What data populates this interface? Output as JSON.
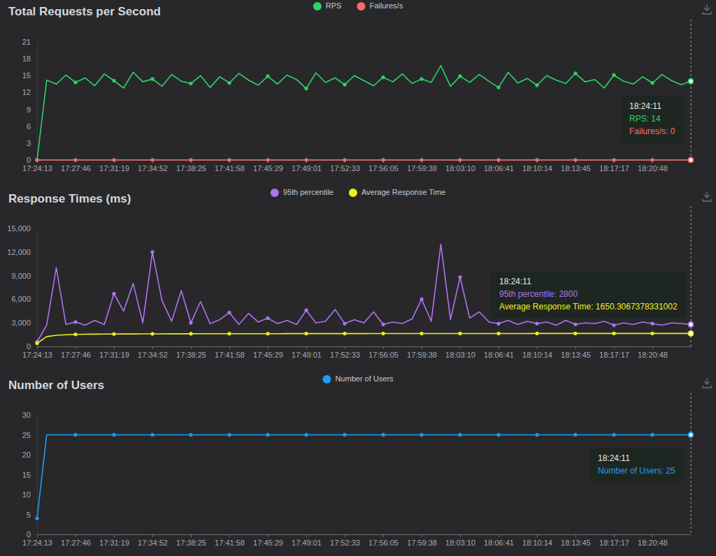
{
  "chart_data": [
    {
      "type": "line",
      "title": "Total Requests per Second",
      "legend": "top",
      "grid": false,
      "categories": [
        "17:24:13",
        null,
        null,
        null,
        "17:27:46",
        null,
        null,
        null,
        "17:31:19",
        null,
        null,
        null,
        "17:34:52",
        null,
        null,
        null,
        "17:38:25",
        null,
        null,
        null,
        "17:41:58",
        null,
        null,
        null,
        "17:45:29",
        null,
        null,
        null,
        "17:49:01",
        null,
        null,
        null,
        "17:52:33",
        null,
        null,
        null,
        "17:56:05",
        null,
        null,
        null,
        "17:59:38",
        null,
        null,
        null,
        "18:03:10",
        null,
        null,
        null,
        "18:06:41",
        null,
        null,
        null,
        "18:10:14",
        null,
        null,
        null,
        "18:13:45",
        null,
        null,
        null,
        "18:17:17",
        null,
        null,
        null,
        "18:20:48",
        null,
        null,
        null,
        null
      ],
      "ylim": [
        0,
        21
      ],
      "yticks": [
        0,
        3,
        6,
        9,
        12,
        15,
        18,
        21
      ],
      "series": [
        {
          "name": "RPS",
          "color": "#2bd565",
          "marker": "circle",
          "values": [
            0,
            14.2,
            13.5,
            15.1,
            13.8,
            14.6,
            13.2,
            15.3,
            14.1,
            12.8,
            15.6,
            13.9,
            14.4,
            13.1,
            15.2,
            14.0,
            13.6,
            15.0,
            12.9,
            14.8,
            13.7,
            15.4,
            14.2,
            13.3,
            14.9,
            13.5,
            15.1,
            14.3,
            12.7,
            15.5,
            13.8,
            14.6,
            13.4,
            15.0,
            14.1,
            13.2,
            14.7,
            13.9,
            15.3,
            13.6,
            14.4,
            13.8,
            16.8,
            13.1,
            14.9,
            13.8,
            15.2,
            14.0,
            12.9,
            15.6,
            13.7,
            14.5,
            13.3,
            15.0,
            14.2,
            13.6,
            15.4,
            13.9,
            14.3,
            12.8,
            15.1,
            14.0,
            13.5,
            14.8,
            13.7,
            15.2,
            14.1,
            13.4,
            14
          ]
        },
        {
          "name": "Failures/s",
          "color": "#ff6b6b",
          "marker": "circle",
          "values": [
            0,
            0,
            0,
            0,
            0,
            0,
            0,
            0,
            0,
            0,
            0,
            0,
            0,
            0,
            0,
            0,
            0,
            0,
            0,
            0,
            0,
            0,
            0,
            0,
            0,
            0,
            0,
            0,
            0,
            0,
            0,
            0,
            0,
            0,
            0,
            0,
            0,
            0,
            0,
            0,
            0,
            0,
            0,
            0,
            0,
            0,
            0,
            0,
            0,
            0,
            0,
            0,
            0,
            0,
            0,
            0,
            0,
            0,
            0,
            0,
            0,
            0,
            0,
            0,
            0,
            0,
            0,
            0,
            0
          ]
        }
      ],
      "tooltip": {
        "title": "18:24:11",
        "lines": [
          "RPS: 14",
          "Failures/s: 0"
        ]
      }
    },
    {
      "type": "line",
      "title": "Response Times (ms)",
      "legend": "top",
      "grid": false,
      "categories": [
        "17:24:13",
        null,
        null,
        null,
        "17:27:46",
        null,
        null,
        null,
        "17:31:19",
        null,
        null,
        null,
        "17:34:52",
        null,
        null,
        null,
        "17:38:25",
        null,
        null,
        null,
        "17:41:58",
        null,
        null,
        null,
        "17:45:29",
        null,
        null,
        null,
        "17:49:01",
        null,
        null,
        null,
        "17:52:33",
        null,
        null,
        null,
        "17:56:05",
        null,
        null,
        null,
        "17:59:38",
        null,
        null,
        null,
        "18:03:10",
        null,
        null,
        null,
        "18:06:41",
        null,
        null,
        null,
        "18:10:14",
        null,
        null,
        null,
        "18:13:45",
        null,
        null,
        null,
        "18:17:17",
        null,
        null,
        null,
        "18:20:48",
        null,
        null,
        null,
        null
      ],
      "ylim": [
        0,
        15000
      ],
      "yticks": [
        0,
        {
          "value": 3000,
          "label": "3,000"
        },
        {
          "value": 6000,
          "label": "6,000"
        },
        {
          "value": 9000,
          "label": "9,000"
        },
        {
          "value": 12000,
          "label": "12,000"
        },
        {
          "value": 15000,
          "label": "15,000"
        }
      ],
      "series": [
        {
          "name": "95th percentile",
          "color": "#b072f2",
          "marker": "circle",
          "values": [
            600,
            2700,
            10000,
            2800,
            3100,
            2700,
            3300,
            2800,
            6700,
            4500,
            8000,
            3000,
            12000,
            5800,
            3200,
            7100,
            3000,
            5700,
            2900,
            3400,
            4300,
            2800,
            4200,
            3100,
            3600,
            2900,
            3300,
            2800,
            4600,
            3000,
            3200,
            4700,
            2900,
            3400,
            3000,
            4400,
            2800,
            3100,
            2900,
            3500,
            6000,
            3200,
            13000,
            3400,
            8800,
            3600,
            4400,
            3100,
            2900,
            3300,
            2800,
            3200,
            2900,
            3100,
            2700,
            3300,
            2800,
            3000,
            2900,
            3200,
            2700,
            3000,
            2800,
            3100,
            2900,
            2700,
            3000,
            2900,
            2800
          ]
        },
        {
          "name": "Average Response Time",
          "color": "#f0f01e",
          "marker": "circle",
          "values": [
            400,
            1250,
            1420,
            1490,
            1530,
            1550,
            1560,
            1570,
            1580,
            1585,
            1590,
            1595,
            1600,
            1603,
            1606,
            1609,
            1612,
            1614,
            1616,
            1618,
            1620,
            1622,
            1623,
            1624,
            1625,
            1626,
            1627,
            1628,
            1629,
            1630,
            1631,
            1632,
            1633,
            1634,
            1635,
            1636,
            1637,
            1638,
            1639,
            1640,
            1641,
            1642,
            1643,
            1644,
            1645,
            1646,
            1646,
            1647,
            1647,
            1648,
            1648,
            1648,
            1649,
            1649,
            1649,
            1649,
            1650,
            1650,
            1650,
            1650,
            1650,
            1650,
            1650,
            1650,
            1650,
            1650,
            1650,
            1650,
            1650.3067378331002
          ]
        }
      ],
      "tooltip": {
        "title": "18:24:11",
        "lines": [
          "95th percentile: 2800",
          "Average Response Time: 1650.3067378331002"
        ]
      }
    },
    {
      "type": "line",
      "title": "Number of Users",
      "legend": "top",
      "grid": false,
      "categories": [
        "17:24:13",
        null,
        null,
        null,
        "17:27:46",
        null,
        null,
        null,
        "17:31:19",
        null,
        null,
        null,
        "17:34:52",
        null,
        null,
        null,
        "17:38:25",
        null,
        null,
        null,
        "17:41:58",
        null,
        null,
        null,
        "17:45:29",
        null,
        null,
        null,
        "17:49:01",
        null,
        null,
        null,
        "17:52:33",
        null,
        null,
        null,
        "17:56:05",
        null,
        null,
        null,
        "17:59:38",
        null,
        null,
        null,
        "18:03:10",
        null,
        null,
        null,
        "18:06:41",
        null,
        null,
        null,
        "18:10:14",
        null,
        null,
        null,
        "18:13:45",
        null,
        null,
        null,
        "18:17:17",
        null,
        null,
        null,
        "18:20:48",
        null,
        null,
        null,
        null
      ],
      "ylim": [
        0,
        30
      ],
      "yticks": [
        0,
        5,
        10,
        15,
        20,
        25,
        30
      ],
      "series": [
        {
          "name": "Number of Users",
          "color": "#1e9df2",
          "marker": "circle",
          "values": [
            4,
            25,
            25,
            25,
            25,
            25,
            25,
            25,
            25,
            25,
            25,
            25,
            25,
            25,
            25,
            25,
            25,
            25,
            25,
            25,
            25,
            25,
            25,
            25,
            25,
            25,
            25,
            25,
            25,
            25,
            25,
            25,
            25,
            25,
            25,
            25,
            25,
            25,
            25,
            25,
            25,
            25,
            25,
            25,
            25,
            25,
            25,
            25,
            25,
            25,
            25,
            25,
            25,
            25,
            25,
            25,
            25,
            25,
            25,
            25,
            25,
            25,
            25,
            25,
            25,
            25,
            25,
            25,
            25
          ]
        }
      ],
      "tooltip": {
        "title": "18:24:11",
        "lines": [
          "Number of Users: 25"
        ]
      }
    }
  ]
}
